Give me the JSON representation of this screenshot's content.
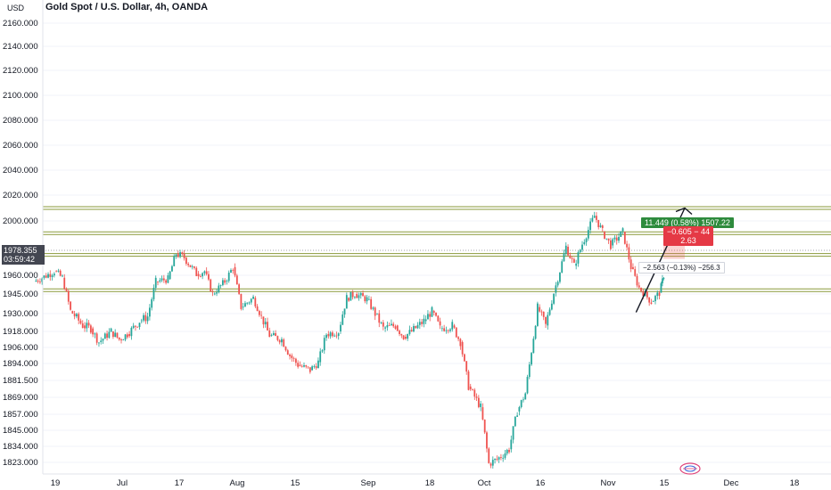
{
  "header": {
    "title": "Gold Spot / U.S. Dollar, 4h, OANDA",
    "unit": "USD"
  },
  "price_tag": {
    "price": "1978.355",
    "countdown": "03:59:42"
  },
  "position_tool": {
    "target_label": "11.449 (0.58%) 1507.22",
    "stop_label_line1": "−0.605 − 44",
    "stop_label_line2": "2.63",
    "risk_label": "−2.563 (−0.13%) −256.3"
  },
  "colors": {
    "up": "#26a69a",
    "down": "#ef5350",
    "level_line": "#8a9a3a",
    "grid": "#f0f3fa",
    "axis_text": "#131722"
  },
  "chart_data": {
    "type": "candlestick",
    "title": "Gold Spot / U.S. Dollar, 4h, OANDA",
    "ylabel": "USD",
    "y_ticks": [
      "2160.000",
      "2140.000",
      "2120.000",
      "2100.000",
      "2080.000",
      "2060.000",
      "2040.000",
      "2020.000",
      "2000.000",
      "1960.000",
      "1945.000",
      "1930.000",
      "1918.000",
      "1906.000",
      "1894.000",
      "1881.500",
      "1869.000",
      "1857.000",
      "1845.000",
      "1834.000",
      "1823.000"
    ],
    "y_tick_values": [
      2160,
      2140,
      2120,
      2100,
      2080,
      2060,
      2040,
      2020,
      2000,
      1960,
      1945,
      1930,
      1918,
      1906,
      1894,
      1881.5,
      1869,
      1857,
      1845,
      1834,
      1823
    ],
    "x_ticks": [
      "19",
      "Jul",
      "17",
      "Aug",
      "15",
      "Sep",
      "18",
      "Oct",
      "16",
      "Nov",
      "15",
      "Dec",
      "18"
    ],
    "last_price": 1978.355,
    "horizontal_levels": [
      2010,
      1991,
      1975,
      1948
    ],
    "projection": {
      "from_date": "Nov 9",
      "from_price": 1931,
      "to_date": "Nov 21",
      "to_price": 2010
    },
    "series": [
      {
        "values": [
          [
            "Jun 14",
            1955,
            1958
          ],
          [
            "Jun 16",
            1958,
            1963
          ],
          [
            "Jun 19",
            1963,
            1958
          ],
          [
            "Jun 21",
            1958,
            1932
          ],
          [
            "Jun 23",
            1932,
            1922
          ],
          [
            "Jun 26",
            1922,
            1920
          ],
          [
            "Jun 28",
            1920,
            1910
          ],
          [
            "Jun 30",
            1910,
            1918
          ],
          [
            "Jul 3",
            1918,
            1912
          ],
          [
            "Jul 5",
            1912,
            1916
          ],
          [
            "Jul 7",
            1916,
            1925
          ],
          [
            "Jul 10",
            1925,
            1928
          ],
          [
            "Jul 12",
            1928,
            1955
          ],
          [
            "Jul 14",
            1955,
            1957
          ],
          [
            "Jul 17",
            1957,
            1976
          ],
          [
            "Jul 19",
            1976,
            1973
          ],
          [
            "Jul 21",
            1973,
            1961
          ],
          [
            "Jul 24",
            1961,
            1963
          ],
          [
            "Jul 26",
            1963,
            1945
          ],
          [
            "Jul 28",
            1945,
            1955
          ],
          [
            "Jul 31",
            1955,
            1966
          ],
          [
            "Aug 2",
            1966,
            1935
          ],
          [
            "Aug 4",
            1935,
            1942
          ],
          [
            "Aug 7",
            1942,
            1928
          ],
          [
            "Aug 9",
            1928,
            1915
          ],
          [
            "Aug 11",
            1915,
            1912
          ],
          [
            "Aug 14",
            1912,
            1900
          ],
          [
            "Aug 16",
            1900,
            1893
          ],
          [
            "Aug 18",
            1893,
            1889
          ],
          [
            "Aug 21",
            1889,
            1895
          ],
          [
            "Aug 23",
            1895,
            1916
          ],
          [
            "Aug 25",
            1916,
            1918
          ],
          [
            "Aug 28",
            1918,
            1942
          ],
          [
            "Aug 30",
            1942,
            1945
          ],
          [
            "Sep 1",
            1945,
            1941
          ],
          [
            "Sep 4",
            1941,
            1930
          ],
          [
            "Sep 6",
            1930,
            1920
          ],
          [
            "Sep 8",
            1920,
            1922
          ],
          [
            "Sep 11",
            1922,
            1914
          ],
          [
            "Sep 13",
            1914,
            1918
          ],
          [
            "Sep 15",
            1918,
            1925
          ],
          [
            "Sep 18",
            1925,
            1932
          ],
          [
            "Sep 20",
            1932,
            1920
          ],
          [
            "Sep 22",
            1920,
            1922
          ],
          [
            "Sep 25",
            1922,
            1910
          ],
          [
            "Sep 27",
            1910,
            1877
          ],
          [
            "Sep 29",
            1877,
            1862
          ],
          [
            "Oct 2",
            1862,
            1822
          ],
          [
            "Oct 4",
            1822,
            1825
          ],
          [
            "Oct 6",
            1825,
            1832
          ],
          [
            "Oct 9",
            1832,
            1859
          ],
          [
            "Oct 11",
            1859,
            1872
          ],
          [
            "Oct 13",
            1872,
            1935
          ],
          [
            "Oct 16",
            1935,
            1922
          ],
          [
            "Oct 18",
            1922,
            1946
          ],
          [
            "Oct 20",
            1946,
            1981
          ],
          [
            "Oct 23",
            1981,
            1967
          ],
          [
            "Oct 25",
            1967,
            1983
          ],
          [
            "Oct 27",
            1983,
            2004
          ],
          [
            "Oct 30",
            2004,
            1992
          ],
          [
            "Nov 1",
            1992,
            1982
          ],
          [
            "Nov 3",
            1982,
            1992
          ],
          [
            "Nov 6",
            1992,
            1966
          ],
          [
            "Nov 8",
            1966,
            1950
          ],
          [
            "Nov 10",
            1950,
            1939
          ],
          [
            "Nov 13",
            1939,
            1946
          ],
          [
            "Nov 15",
            1946,
            1960
          ],
          [
            "Nov 16",
            1960,
            1978
          ]
        ]
      }
    ]
  }
}
